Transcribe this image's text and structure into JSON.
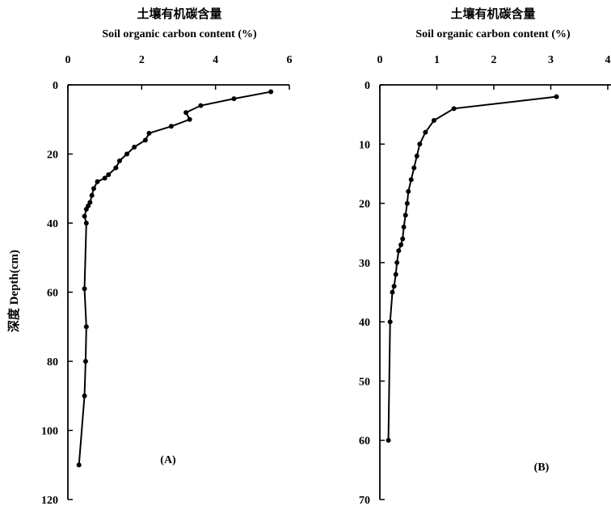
{
  "chart_data": [
    {
      "type": "line",
      "panel_label": "(A)",
      "title_cn": "土壤有机碳含量",
      "title_en": "Soil organic carbon content (%)",
      "ylabel": "深度 Depth(cm)",
      "xlim": [
        0,
        6
      ],
      "ylim": [
        0,
        120
      ],
      "y_reversed": true,
      "x_ticks": [
        "0",
        "2",
        "4",
        "6"
      ],
      "y_ticks": [
        "0",
        "20",
        "40",
        "60",
        "80",
        "100",
        "120"
      ],
      "series": [
        {
          "x": [
            5.5,
            4.5,
            3.6,
            3.2,
            3.3,
            2.8,
            2.2,
            2.1,
            1.8,
            1.6,
            1.4,
            1.3,
            1.1,
            1.0,
            0.8,
            0.7,
            0.65,
            0.6,
            0.55,
            0.5,
            0.45,
            0.5,
            0.45,
            0.5,
            0.48,
            0.45,
            0.3
          ],
          "y": [
            2,
            4,
            6,
            8,
            10,
            12,
            14,
            16,
            18,
            20,
            22,
            24,
            26,
            27,
            28,
            30,
            32,
            34,
            35,
            36,
            38,
            40,
            59,
            70,
            80,
            90,
            110
          ]
        }
      ]
    },
    {
      "type": "line",
      "panel_label": "(B)",
      "title_cn": "土壤有机碳含量",
      "title_en": "Soil organic carbon content (%)",
      "xlim": [
        0,
        4
      ],
      "ylim": [
        0,
        70
      ],
      "y_reversed": true,
      "x_ticks": [
        "0",
        "1",
        "2",
        "3",
        "4"
      ],
      "y_ticks": [
        "0",
        "10",
        "20",
        "30",
        "40",
        "50",
        "60",
        "70"
      ],
      "series": [
        {
          "x": [
            3.1,
            1.3,
            0.95,
            0.8,
            0.7,
            0.65,
            0.6,
            0.55,
            0.5,
            0.48,
            0.45,
            0.42,
            0.4,
            0.37,
            0.33,
            0.3,
            0.28,
            0.25,
            0.22,
            0.18,
            0.15
          ],
          "y": [
            2,
            4,
            6,
            8,
            10,
            12,
            14,
            16,
            18,
            20,
            22,
            24,
            26,
            27,
            28,
            30,
            32,
            34,
            35,
            40,
            60
          ]
        }
      ]
    }
  ]
}
